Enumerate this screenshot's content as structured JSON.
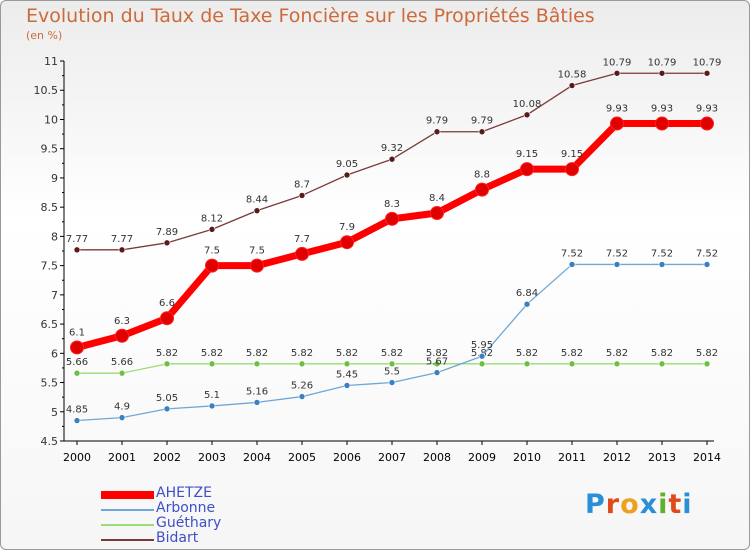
{
  "chart_data": {
    "type": "line",
    "title": "Evolution du Taux de Taxe Foncière sur les Propriétés Bâties",
    "subtitle": "(en %)",
    "x": [
      "2000",
      "2001",
      "2002",
      "2003",
      "2004",
      "2005",
      "2006",
      "2007",
      "2008",
      "2009",
      "2010",
      "2011",
      "2012",
      "2013",
      "2014"
    ],
    "ylim": [
      4.5,
      11
    ],
    "yticks": [
      "4.5",
      "5",
      "5.5",
      "6",
      "6.5",
      "7",
      "7.5",
      "8",
      "8.5",
      "9",
      "9.5",
      "10",
      "10.5",
      "11"
    ],
    "series": [
      {
        "name": "AHETZE",
        "color": "#ff0000",
        "marker": "#e00000",
        "values": [
          6.1,
          6.3,
          6.6,
          7.5,
          7.5,
          7.7,
          7.9,
          8.3,
          8.4,
          8.8,
          9.15,
          9.15,
          9.93,
          9.93,
          9.93
        ],
        "labels": [
          "6.1",
          "6.3",
          "6.6",
          "7.5",
          "7.5",
          "7.7",
          "7.9",
          "8.3",
          "8.4",
          "8.8",
          "9.15",
          "9.15",
          "9.93",
          "9.93",
          "9.93"
        ]
      },
      {
        "name": "Arbonne",
        "color": "#6fa8d6",
        "marker": "#3a7fc0",
        "values": [
          4.85,
          4.9,
          5.05,
          5.1,
          5.16,
          5.26,
          5.45,
          5.5,
          5.67,
          5.95,
          6.84,
          7.52,
          7.52,
          7.52,
          7.52
        ],
        "labels": [
          "4.85",
          "4.9",
          "5.05",
          "5.1",
          "5.16",
          "5.26",
          "5.45",
          "5.5",
          "5.67",
          "5.95",
          "6.84",
          "7.52",
          "7.52",
          "7.52",
          "7.52"
        ]
      },
      {
        "name": "Guéthary",
        "color": "#99dd77",
        "marker": "#6cc040",
        "values": [
          5.66,
          5.66,
          5.82,
          5.82,
          5.82,
          5.82,
          5.82,
          5.82,
          5.82,
          5.82,
          5.82,
          5.82,
          5.82,
          5.82,
          5.82
        ],
        "labels": [
          "5.66",
          "5.66",
          "5.82",
          "5.82",
          "5.82",
          "5.82",
          "5.82",
          "5.82",
          "5.82",
          "5.82",
          "5.82",
          "5.82",
          "5.82",
          "5.82",
          "5.82"
        ]
      },
      {
        "name": "Bidart",
        "color": "#7a3a3a",
        "marker": "#5a1a1a",
        "values": [
          7.77,
          7.77,
          7.89,
          8.12,
          8.44,
          8.7,
          9.05,
          9.32,
          9.79,
          9.79,
          10.08,
          10.58,
          10.79,
          10.79,
          10.79
        ],
        "labels": [
          "7.77",
          "7.77",
          "7.89",
          "8.12",
          "8.44",
          "8.7",
          "9.05",
          "9.32",
          "9.79",
          "9.79",
          "10.08",
          "10.58",
          "10.79",
          "10.79",
          "10.79"
        ]
      }
    ],
    "legend": [
      "AHETZE",
      "Arbonne",
      "Guéthary",
      "Bidart"
    ]
  },
  "logo": {
    "letters": [
      "P",
      "r",
      "o",
      "x",
      "i",
      "t",
      "i"
    ],
    "colors": [
      "#2a8fd6",
      "#e04a1a",
      "#f0a020",
      "#2a8fd6",
      "#60b030",
      "#e04a1a",
      "#2a8fd6"
    ]
  }
}
